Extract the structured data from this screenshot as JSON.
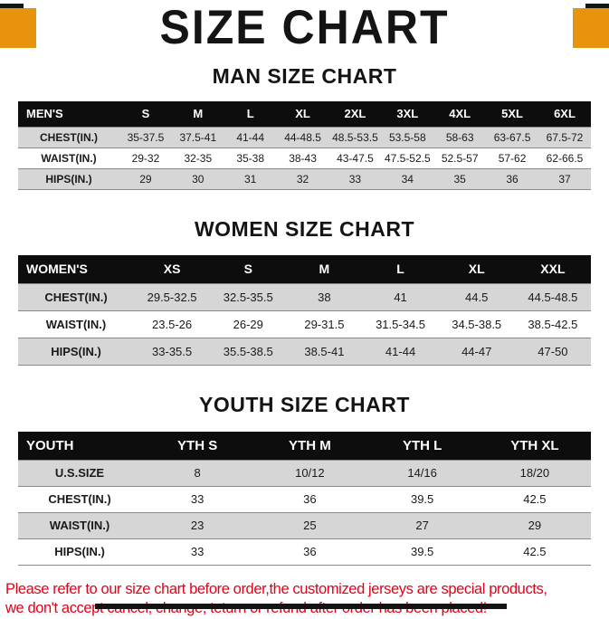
{
  "theme": {
    "accent": "#e8930d",
    "note_text": "#e50019",
    "table_header_bg": "#0d0d0d",
    "stripe_gray": "#d6d6d6"
  },
  "page": {
    "title": "SIZE CHART"
  },
  "tables": [
    {
      "heading": "MAN SIZE CHART",
      "header": [
        "MEN'S",
        "S",
        "M",
        "L",
        "XL",
        "2XL",
        "3XL",
        "4XL",
        "5XL",
        "6XL"
      ],
      "rows": [
        [
          "CHEST(IN.)",
          "35-37.5",
          "37.5-41",
          "41-44",
          "44-48.5",
          "48.5-53.5",
          "53.5-58",
          "58-63",
          "63-67.5",
          "67.5-72"
        ],
        [
          "WAIST(IN.)",
          "29-32",
          "32-35",
          "35-38",
          "38-43",
          "43-47.5",
          "47.5-52.5",
          "52.5-57",
          "57-62",
          "62-66.5"
        ],
        [
          "HIPS(IN.)",
          "29",
          "30",
          "31",
          "32",
          "33",
          "34",
          "35",
          "36",
          "37"
        ]
      ]
    },
    {
      "heading": "WOMEN SIZE CHART",
      "header": [
        "WOMEN'S",
        "XS",
        "S",
        "M",
        "L",
        "XL",
        "XXL"
      ],
      "rows": [
        [
          "CHEST(IN.)",
          "29.5-32.5",
          "32.5-35.5",
          "38",
          "41",
          "44.5",
          "44.5-48.5"
        ],
        [
          "WAIST(IN.)",
          "23.5-26",
          "26-29",
          "29-31.5",
          "31.5-34.5",
          "34.5-38.5",
          "38.5-42.5"
        ],
        [
          "HIPS(IN.)",
          "33-35.5",
          "35.5-38.5",
          "38.5-41",
          "41-44",
          "44-47",
          "47-50"
        ]
      ]
    },
    {
      "heading": "YOUTH SIZE CHART",
      "header": [
        "YOUTH",
        "YTH S",
        "YTH M",
        "YTH L",
        "YTH XL"
      ],
      "rows": [
        [
          "U.S.SIZE",
          "8",
          "10/12",
          "14/16",
          "18/20"
        ],
        [
          "CHEST(IN.)",
          "33",
          "36",
          "39.5",
          "42.5"
        ],
        [
          "WAIST(IN.)",
          "23",
          "25",
          "27",
          "29"
        ],
        [
          "HIPS(IN.)",
          "33",
          "36",
          "39.5",
          "42.5"
        ]
      ]
    }
  ],
  "note": {
    "line1": "Please refer to our size chart before order,the customized jerseys are special products,",
    "line2": "we don't accept cancel, change, teturn or refund after order has been placed!"
  }
}
